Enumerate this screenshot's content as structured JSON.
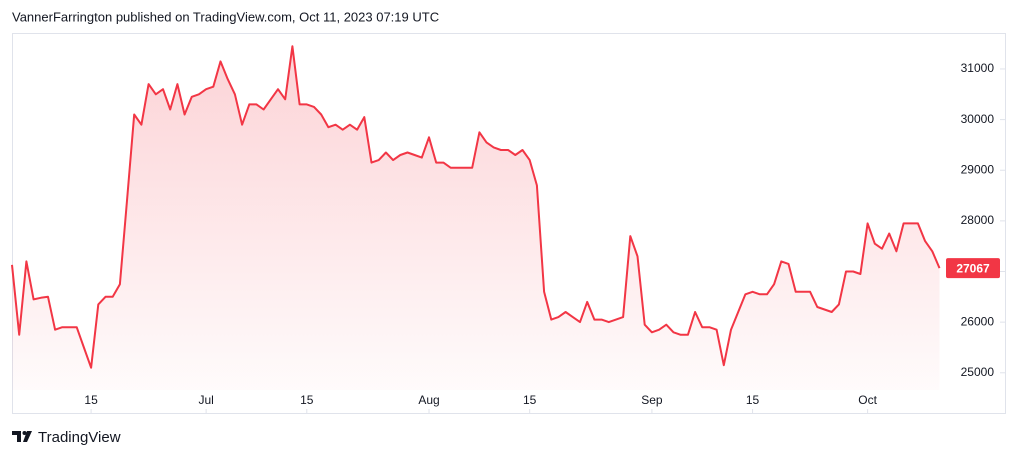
{
  "header": "VannerFarrington published on TradingView.com, Oct 11, 2023 07:19 UTC",
  "footer": "TradingView",
  "chart_data": {
    "type": "area",
    "x": [
      "Jun 4",
      "Jun 5",
      "Jun 6",
      "Jun 7",
      "Jun 8",
      "Jun 9",
      "Jun 10",
      "Jun 11",
      "Jun 12",
      "Jun 13",
      "Jun 14",
      "Jun 15",
      "Jun 16",
      "Jun 17",
      "Jun 18",
      "Jun 19",
      "Jun 20",
      "Jun 21",
      "Jun 22",
      "Jun 23",
      "Jun 24",
      "Jun 25",
      "Jun 26",
      "Jun 27",
      "Jun 28",
      "Jun 29",
      "Jun 30",
      "Jul 1",
      "Jul 2",
      "Jul 3",
      "Jul 4",
      "Jul 5",
      "Jul 6",
      "Jul 7",
      "Jul 8",
      "Jul 9",
      "Jul 10",
      "Jul 11",
      "Jul 12",
      "Jul 13",
      "Jul 14",
      "Jul 15",
      "Jul 16",
      "Jul 17",
      "Jul 18",
      "Jul 19",
      "Jul 20",
      "Jul 21",
      "Jul 22",
      "Jul 23",
      "Jul 24",
      "Jul 25",
      "Jul 26",
      "Jul 27",
      "Jul 28",
      "Jul 29",
      "Jul 30",
      "Jul 31",
      "Aug 1",
      "Aug 2",
      "Aug 3",
      "Aug 4",
      "Aug 5",
      "Aug 6",
      "Aug 7",
      "Aug 8",
      "Aug 9",
      "Aug 10",
      "Aug 11",
      "Aug 12",
      "Aug 13",
      "Aug 14",
      "Aug 15",
      "Aug 16",
      "Aug 17",
      "Aug 18",
      "Aug 19",
      "Aug 20",
      "Aug 21",
      "Aug 22",
      "Aug 23",
      "Aug 24",
      "Aug 25",
      "Aug 26",
      "Aug 27",
      "Aug 28",
      "Aug 29",
      "Aug 30",
      "Aug 31",
      "Sep 1",
      "Sep 2",
      "Sep 3",
      "Sep 4",
      "Sep 5",
      "Sep 6",
      "Sep 7",
      "Sep 8",
      "Sep 9",
      "Sep 10",
      "Sep 11",
      "Sep 12",
      "Sep 13",
      "Sep 14",
      "Sep 15",
      "Sep 16",
      "Sep 17",
      "Sep 18",
      "Sep 19",
      "Sep 20",
      "Sep 21",
      "Sep 22",
      "Sep 23",
      "Sep 24",
      "Sep 25",
      "Sep 26",
      "Sep 27",
      "Sep 28",
      "Sep 29",
      "Sep 30",
      "Oct 1",
      "Oct 2",
      "Oct 3",
      "Oct 4",
      "Oct 5",
      "Oct 6",
      "Oct 7",
      "Oct 8",
      "Oct 9",
      "Oct 10",
      "Oct 11"
    ],
    "series": [
      {
        "color": "#f23645",
        "values": [
          27130,
          25750,
          27200,
          26450,
          26480,
          26500,
          25850,
          25900,
          25900,
          25900,
          25500,
          25100,
          26350,
          26500,
          26500,
          26750,
          28400,
          30100,
          29900,
          30700,
          30500,
          30600,
          30200,
          30700,
          30100,
          30450,
          30500,
          30600,
          30650,
          31150,
          30800,
          30500,
          29900,
          30300,
          30300,
          30200,
          30400,
          30600,
          30400,
          31450,
          30300,
          30300,
          30250,
          30100,
          29850,
          29900,
          29800,
          29900,
          29800,
          30050,
          29150,
          29200,
          29350,
          29200,
          29300,
          29350,
          29300,
          29250,
          29650,
          29150,
          29150,
          29050,
          29050,
          29050,
          29050,
          29750,
          29550,
          29450,
          29400,
          29400,
          29300,
          29400,
          29200,
          28700,
          26600,
          26050,
          26100,
          26200,
          26100,
          26000,
          26400,
          26050,
          26050,
          26000,
          26050,
          26100,
          27700,
          27300,
          25950,
          25800,
          25850,
          25950,
          25800,
          25750,
          25750,
          26200,
          25900,
          25900,
          25850,
          25150,
          25850,
          26200,
          26550,
          26600,
          26550,
          26550,
          26750,
          27200,
          27150,
          26600,
          26600,
          26600,
          26300,
          26250,
          26200,
          26350,
          27000,
          27000,
          26950,
          27950,
          27550,
          27450,
          27750,
          27400,
          27950,
          27950,
          27950,
          27600,
          27400,
          27067
        ]
      }
    ],
    "ylim": [
      24660,
      31710
    ],
    "yticks": [
      25000,
      26000,
      27000,
      28000,
      29000,
      30000,
      31000
    ],
    "xticks": [
      {
        "value": "Jun 15",
        "label": "15"
      },
      {
        "value": "Jul 1",
        "label": "Jul"
      },
      {
        "value": "Jul 15",
        "label": "15"
      },
      {
        "value": "Aug 1",
        "label": "Aug"
      },
      {
        "value": "Aug 15",
        "label": "15"
      },
      {
        "value": "Sep 1",
        "label": "Sep"
      },
      {
        "value": "Sep 15",
        "label": "15"
      },
      {
        "value": "Oct 1",
        "label": "Oct"
      }
    ],
    "grid": false
  }
}
